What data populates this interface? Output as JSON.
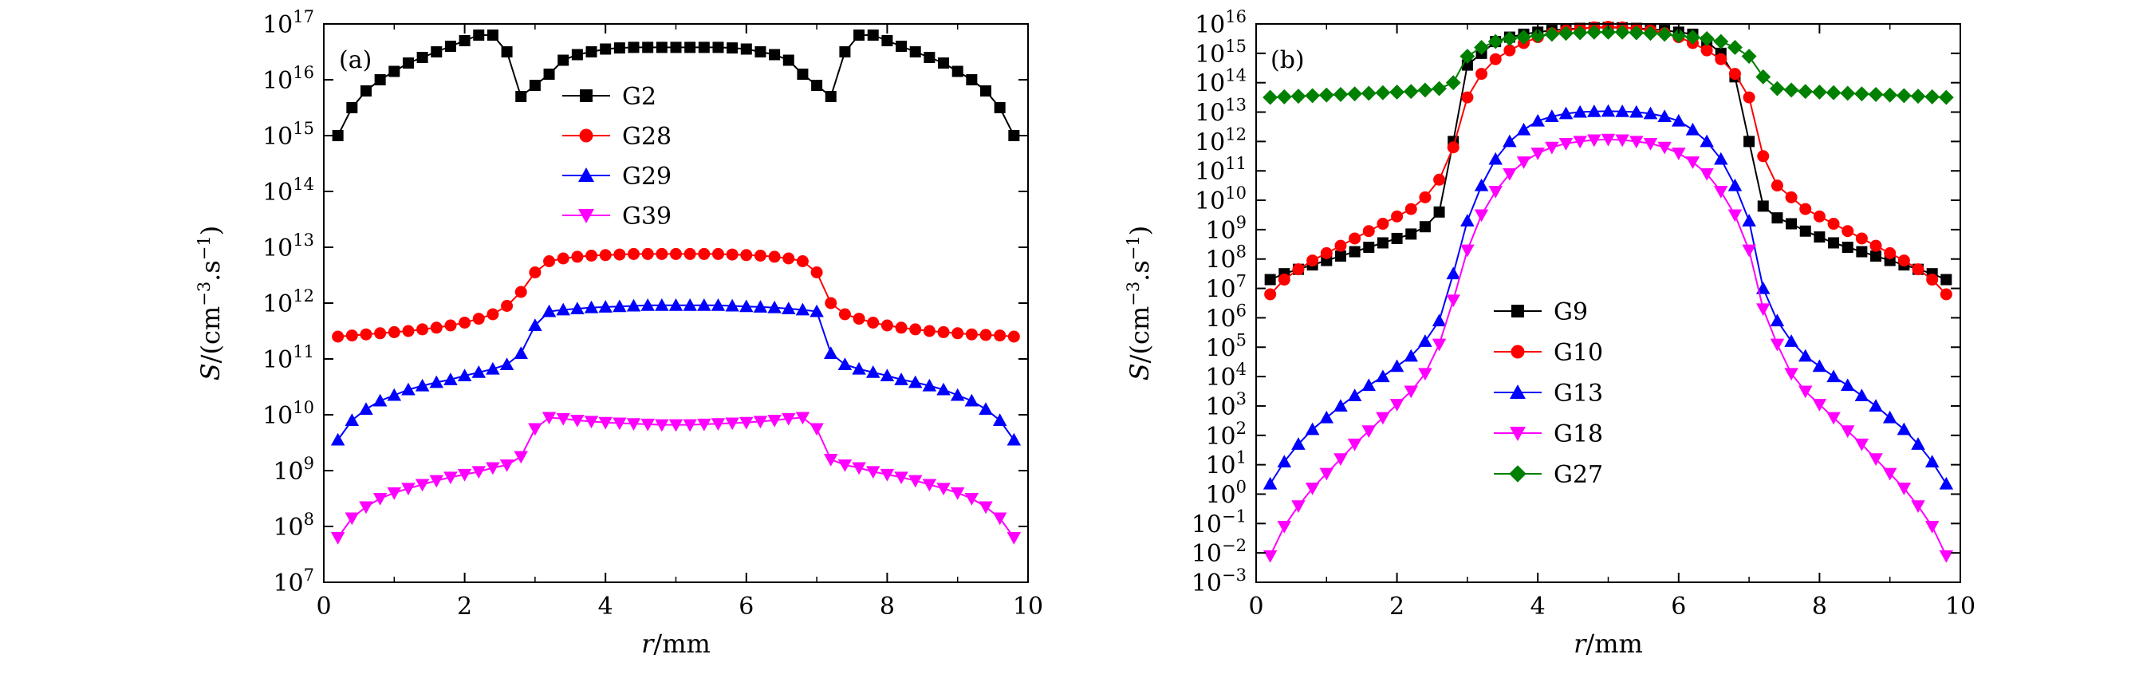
{
  "chart_data": [
    {
      "type": "line",
      "panel_label": "(a)",
      "xlabel_var": "r",
      "xlabel_unit": "/mm",
      "ylabel_var": "S",
      "ylabel_unit": "/(cm",
      "ylabel_sup1": "−3",
      "ylabel_mid": ".s",
      "ylabel_sup2": "−1",
      "ylabel_end": ")",
      "xlim": [
        0,
        10
      ],
      "ylim_log10": [
        7,
        17
      ],
      "yscale": "log",
      "x_ticks": [
        "0",
        "2",
        "4",
        "6",
        "8",
        "10"
      ],
      "y_tick_exponents": [
        "7",
        "8",
        "9",
        "10",
        "11",
        "12",
        "13",
        "14",
        "15",
        "16",
        "17"
      ],
      "legend": "top-center",
      "series": [
        {
          "name": "G2",
          "color": "#000000",
          "marker": "square",
          "x": [
            0.2,
            0.4,
            0.6,
            0.8,
            1.0,
            1.2,
            1.4,
            1.6,
            1.8,
            2.0,
            2.2,
            2.4,
            2.6,
            2.8,
            3.0,
            3.2,
            3.4,
            3.6,
            3.8,
            4.0,
            4.2,
            4.4,
            4.6,
            4.8,
            5.0,
            5.2,
            5.4,
            5.6,
            5.8,
            6.0,
            6.2,
            6.4,
            6.6,
            6.8,
            7.0,
            7.2,
            7.4,
            7.6,
            7.8,
            8.0,
            8.2,
            8.4,
            8.6,
            8.8,
            9.0,
            9.2,
            9.4,
            9.6,
            9.8
          ],
          "y_log10": [
            15.0,
            15.5,
            15.8,
            16.0,
            16.15,
            16.3,
            16.4,
            16.5,
            16.6,
            16.7,
            16.8,
            16.8,
            16.5,
            15.7,
            15.9,
            16.1,
            16.35,
            16.45,
            16.5,
            16.55,
            16.57,
            16.58,
            16.58,
            16.58,
            16.58,
            16.58,
            16.58,
            16.58,
            16.57,
            16.55,
            16.5,
            16.45,
            16.35,
            16.1,
            15.9,
            15.7,
            16.5,
            16.8,
            16.8,
            16.7,
            16.6,
            16.5,
            16.4,
            16.3,
            16.15,
            16.0,
            15.8,
            15.5,
            15.0
          ]
        },
        {
          "name": "G28",
          "color": "#ff0000",
          "marker": "circle",
          "x": [
            0.2,
            0.4,
            0.6,
            0.8,
            1.0,
            1.2,
            1.4,
            1.6,
            1.8,
            2.0,
            2.2,
            2.4,
            2.6,
            2.8,
            3.0,
            3.2,
            3.4,
            3.6,
            3.8,
            4.0,
            4.2,
            4.4,
            4.6,
            4.8,
            5.0,
            5.2,
            5.4,
            5.6,
            5.8,
            6.0,
            6.2,
            6.4,
            6.6,
            6.8,
            7.0,
            7.2,
            7.4,
            7.6,
            7.8,
            8.0,
            8.2,
            8.4,
            8.6,
            8.8,
            9.0,
            9.2,
            9.4,
            9.6,
            9.8
          ],
          "y_log10": [
            11.4,
            11.42,
            11.44,
            11.46,
            11.48,
            11.5,
            11.53,
            11.56,
            11.6,
            11.65,
            11.72,
            11.8,
            11.95,
            12.2,
            12.55,
            12.75,
            12.8,
            12.83,
            12.85,
            12.86,
            12.87,
            12.88,
            12.88,
            12.88,
            12.88,
            12.88,
            12.88,
            12.88,
            12.87,
            12.86,
            12.85,
            12.83,
            12.8,
            12.75,
            12.55,
            12.0,
            11.8,
            11.72,
            11.65,
            11.6,
            11.56,
            11.53,
            11.5,
            11.48,
            11.46,
            11.44,
            11.43,
            11.42,
            11.4
          ]
        },
        {
          "name": "G29",
          "color": "#0000ff",
          "marker": "triangle-up",
          "x": [
            0.2,
            0.4,
            0.6,
            0.8,
            1.0,
            1.2,
            1.4,
            1.6,
            1.8,
            2.0,
            2.2,
            2.4,
            2.6,
            2.8,
            3.0,
            3.2,
            3.4,
            3.6,
            3.8,
            4.0,
            4.2,
            4.4,
            4.6,
            4.8,
            5.0,
            5.2,
            5.4,
            5.6,
            5.8,
            6.0,
            6.2,
            6.4,
            6.6,
            6.8,
            7.0,
            7.2,
            7.4,
            7.6,
            7.8,
            8.0,
            8.2,
            8.4,
            8.6,
            8.8,
            9.0,
            9.2,
            9.4,
            9.6,
            9.8
          ],
          "y_log10": [
            9.55,
            9.9,
            10.1,
            10.25,
            10.35,
            10.45,
            10.52,
            10.58,
            10.63,
            10.7,
            10.76,
            10.82,
            10.9,
            11.1,
            11.6,
            11.85,
            11.88,
            11.9,
            11.92,
            11.93,
            11.94,
            11.95,
            11.96,
            11.96,
            11.96,
            11.96,
            11.96,
            11.96,
            11.95,
            11.94,
            11.93,
            11.92,
            11.9,
            11.88,
            11.85,
            11.1,
            10.9,
            10.82,
            10.76,
            10.7,
            10.63,
            10.58,
            10.52,
            10.45,
            10.35,
            10.25,
            10.1,
            9.9,
            9.55
          ]
        },
        {
          "name": "G39",
          "color": "#ff00ff",
          "marker": "triangle-down",
          "x": [
            0.2,
            0.4,
            0.6,
            0.8,
            1.0,
            1.2,
            1.4,
            1.6,
            1.8,
            2.0,
            2.2,
            2.4,
            2.6,
            2.8,
            3.0,
            3.2,
            3.4,
            3.6,
            3.8,
            4.0,
            4.2,
            4.4,
            4.6,
            4.8,
            5.0,
            5.2,
            5.4,
            5.6,
            5.8,
            6.0,
            6.2,
            6.4,
            6.6,
            6.8,
            7.0,
            7.2,
            7.4,
            7.6,
            7.8,
            8.0,
            8.2,
            8.4,
            8.6,
            8.8,
            9.0,
            9.2,
            9.4,
            9.6,
            9.8
          ],
          "y_log10": [
            7.8,
            8.15,
            8.35,
            8.5,
            8.6,
            8.68,
            8.75,
            8.82,
            8.88,
            8.93,
            8.98,
            9.05,
            9.1,
            9.25,
            9.75,
            9.95,
            9.93,
            9.9,
            9.88,
            9.86,
            9.85,
            9.84,
            9.83,
            9.82,
            9.82,
            9.82,
            9.83,
            9.84,
            9.85,
            9.86,
            9.88,
            9.9,
            9.93,
            9.95,
            9.75,
            9.2,
            9.1,
            9.05,
            8.98,
            8.93,
            8.88,
            8.82,
            8.75,
            8.68,
            8.6,
            8.5,
            8.35,
            8.15,
            7.8
          ]
        }
      ]
    },
    {
      "type": "line",
      "panel_label": "(b)",
      "xlabel_var": "r",
      "xlabel_unit": "/mm",
      "ylabel_var": "S",
      "ylabel_unit": "/(cm",
      "ylabel_sup1": "−3",
      "ylabel_mid": ".s",
      "ylabel_sup2": "−1",
      "ylabel_end": ")",
      "xlim": [
        0,
        10
      ],
      "ylim_log10": [
        -3,
        16
      ],
      "yscale": "log",
      "x_ticks": [
        "0",
        "2",
        "4",
        "6",
        "8",
        "10"
      ],
      "y_tick_exponents": [
        "−3",
        "−2",
        "−1",
        "0",
        "1",
        "2",
        "3",
        "4",
        "5",
        "6",
        "7",
        "8",
        "9",
        "10",
        "11",
        "12",
        "13",
        "14",
        "15",
        "16"
      ],
      "legend": "bottom-center",
      "series": [
        {
          "name": "G9",
          "color": "#000000",
          "marker": "square",
          "x": [
            0.2,
            0.4,
            0.6,
            0.8,
            1.0,
            1.2,
            1.4,
            1.6,
            1.8,
            2.0,
            2.2,
            2.4,
            2.6,
            2.8,
            3.0,
            3.2,
            3.4,
            3.6,
            3.8,
            4.0,
            4.2,
            4.4,
            4.6,
            4.8,
            5.0,
            5.2,
            5.4,
            5.6,
            5.8,
            6.0,
            6.2,
            6.4,
            6.6,
            6.8,
            7.0,
            7.2,
            7.4,
            7.6,
            7.8,
            8.0,
            8.2,
            8.4,
            8.6,
            8.8,
            9.0,
            9.2,
            9.4,
            9.6,
            9.8
          ],
          "y_log10": [
            7.3,
            7.5,
            7.65,
            7.8,
            7.95,
            8.1,
            8.25,
            8.4,
            8.55,
            8.7,
            8.85,
            9.1,
            9.6,
            12.0,
            14.6,
            15.0,
            15.4,
            15.55,
            15.65,
            15.72,
            15.78,
            15.82,
            15.85,
            15.87,
            15.88,
            15.87,
            15.85,
            15.82,
            15.78,
            15.72,
            15.65,
            15.4,
            15.0,
            14.2,
            12.0,
            9.8,
            9.4,
            9.2,
            8.95,
            8.75,
            8.55,
            8.4,
            8.25,
            8.1,
            7.95,
            7.8,
            7.65,
            7.5,
            7.3
          ]
        },
        {
          "name": "G10",
          "color": "#ff0000",
          "marker": "circle",
          "x": [
            0.2,
            0.4,
            0.6,
            0.8,
            1.0,
            1.2,
            1.4,
            1.6,
            1.8,
            2.0,
            2.2,
            2.4,
            2.6,
            2.8,
            3.0,
            3.2,
            3.4,
            3.6,
            3.8,
            4.0,
            4.2,
            4.4,
            4.6,
            4.8,
            5.0,
            5.2,
            5.4,
            5.6,
            5.8,
            6.0,
            6.2,
            6.4,
            6.6,
            6.8,
            7.0,
            7.2,
            7.4,
            7.6,
            7.8,
            8.0,
            8.2,
            8.4,
            8.6,
            8.8,
            9.0,
            9.2,
            9.4,
            9.6,
            9.8
          ],
          "y_log10": [
            6.8,
            7.3,
            7.65,
            7.95,
            8.2,
            8.45,
            8.7,
            8.95,
            9.2,
            9.45,
            9.7,
            10.1,
            10.7,
            11.8,
            13.5,
            14.3,
            14.8,
            15.1,
            15.35,
            15.55,
            15.68,
            15.78,
            15.84,
            15.88,
            15.9,
            15.88,
            15.84,
            15.78,
            15.68,
            15.55,
            15.35,
            15.1,
            14.8,
            14.3,
            13.5,
            11.5,
            10.5,
            10.1,
            9.7,
            9.45,
            9.2,
            8.95,
            8.7,
            8.45,
            8.2,
            7.95,
            7.65,
            7.3,
            6.8
          ]
        },
        {
          "name": "G13",
          "color": "#0000ff",
          "marker": "triangle-up",
          "x": [
            0.2,
            0.4,
            0.6,
            0.8,
            1.0,
            1.2,
            1.4,
            1.6,
            1.8,
            2.0,
            2.2,
            2.4,
            2.6,
            2.8,
            3.0,
            3.2,
            3.4,
            3.6,
            3.8,
            4.0,
            4.2,
            4.4,
            4.6,
            4.8,
            5.0,
            5.2,
            5.4,
            5.6,
            5.8,
            6.0,
            6.2,
            6.4,
            6.6,
            6.8,
            7.0,
            7.2,
            7.4,
            7.6,
            7.8,
            8.0,
            8.2,
            8.4,
            8.6,
            8.8,
            9.0,
            9.2,
            9.4,
            9.6,
            9.8
          ],
          "y_log10": [
            0.35,
            1.1,
            1.7,
            2.2,
            2.6,
            3.0,
            3.35,
            3.7,
            4.0,
            4.35,
            4.7,
            5.2,
            5.9,
            7.5,
            9.3,
            10.5,
            11.4,
            12.0,
            12.4,
            12.7,
            12.85,
            12.95,
            13.0,
            13.02,
            13.03,
            13.02,
            13.0,
            12.95,
            12.85,
            12.7,
            12.4,
            12.0,
            11.4,
            10.5,
            9.3,
            7.0,
            5.9,
            5.2,
            4.7,
            4.35,
            4.0,
            3.7,
            3.35,
            3.0,
            2.6,
            2.2,
            1.7,
            1.1,
            0.35
          ]
        },
        {
          "name": "G18",
          "color": "#ff00ff",
          "marker": "triangle-down",
          "x": [
            0.2,
            0.4,
            0.6,
            0.8,
            1.0,
            1.2,
            1.4,
            1.6,
            1.8,
            2.0,
            2.2,
            2.4,
            2.6,
            2.8,
            3.0,
            3.2,
            3.4,
            3.6,
            3.8,
            4.0,
            4.2,
            4.4,
            4.6,
            4.8,
            5.0,
            5.2,
            5.4,
            5.6,
            5.8,
            6.0,
            6.2,
            6.4,
            6.6,
            6.8,
            7.0,
            7.2,
            7.4,
            7.6,
            7.8,
            8.0,
            8.2,
            8.4,
            8.6,
            8.8,
            9.0,
            9.2,
            9.4,
            9.6,
            9.8
          ],
          "y_log10": [
            -2.1,
            -1.1,
            -0.4,
            0.2,
            0.7,
            1.2,
            1.7,
            2.15,
            2.6,
            3.05,
            3.5,
            4.1,
            5.1,
            6.6,
            8.3,
            9.5,
            10.3,
            10.9,
            11.3,
            11.6,
            11.8,
            11.93,
            12.0,
            12.05,
            12.07,
            12.05,
            12.0,
            11.93,
            11.8,
            11.6,
            11.3,
            10.9,
            10.3,
            9.5,
            8.3,
            6.3,
            5.1,
            4.1,
            3.5,
            3.05,
            2.6,
            2.15,
            1.7,
            1.2,
            0.7,
            0.2,
            -0.4,
            -1.1,
            -2.1
          ]
        },
        {
          "name": "G27",
          "color": "#008000",
          "marker": "diamond",
          "x": [
            0.2,
            0.4,
            0.6,
            0.8,
            1.0,
            1.2,
            1.4,
            1.6,
            1.8,
            2.0,
            2.2,
            2.4,
            2.6,
            2.8,
            3.0,
            3.2,
            3.4,
            3.6,
            3.8,
            4.0,
            4.2,
            4.4,
            4.6,
            4.8,
            5.0,
            5.2,
            5.4,
            5.6,
            5.8,
            6.0,
            6.2,
            6.4,
            6.6,
            6.8,
            7.0,
            7.2,
            7.4,
            7.6,
            7.8,
            8.0,
            8.2,
            8.4,
            8.6,
            8.8,
            9.0,
            9.2,
            9.4,
            9.6,
            9.8
          ],
          "y_log10": [
            13.5,
            13.52,
            13.54,
            13.56,
            13.58,
            13.6,
            13.62,
            13.64,
            13.66,
            13.68,
            13.7,
            13.75,
            13.8,
            14.0,
            14.9,
            15.2,
            15.4,
            15.5,
            15.55,
            15.6,
            15.65,
            15.68,
            15.7,
            15.72,
            15.72,
            15.72,
            15.7,
            15.68,
            15.65,
            15.6,
            15.55,
            15.5,
            15.4,
            15.2,
            14.9,
            14.2,
            13.8,
            13.75,
            13.7,
            13.68,
            13.66,
            13.64,
            13.62,
            13.6,
            13.58,
            13.56,
            13.54,
            13.52,
            13.5
          ]
        }
      ]
    }
  ]
}
